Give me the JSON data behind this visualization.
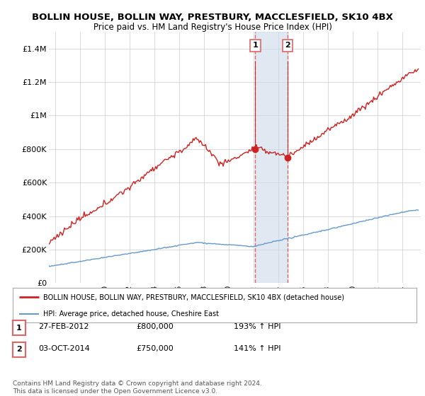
{
  "title": "BOLLIN HOUSE, BOLLIN WAY, PRESTBURY, MACCLESFIELD, SK10 4BX",
  "subtitle": "Price paid vs. HM Land Registry's House Price Index (HPI)",
  "ylabel_ticks": [
    "£0",
    "£200K",
    "£400K",
    "£600K",
    "£800K",
    "£1M",
    "£1.2M",
    "£1.4M"
  ],
  "ytick_values": [
    0,
    200000,
    400000,
    600000,
    800000,
    1000000,
    1200000,
    1400000
  ],
  "ylim": [
    0,
    1500000
  ],
  "xlim_start": 1995.5,
  "xlim_end": 2025.5,
  "sale1_date": 2012.15,
  "sale1_price": 800000,
  "sale1_label": "1",
  "sale2_date": 2014.75,
  "sale2_price": 750000,
  "sale2_label": "2",
  "red_color": "#cc2222",
  "blue_color": "#6699cc",
  "shade_color": "#ccd9e8",
  "vline_color": "#dd6666",
  "legend_red_label": "BOLLIN HOUSE, BOLLIN WAY, PRESTBURY, MACCLESFIELD, SK10 4BX (detached house)",
  "legend_blue_label": "HPI: Average price, detached house, Cheshire East",
  "table_rows": [
    {
      "num": "1",
      "date": "27-FEB-2012",
      "price": "£800,000",
      "hpi": "193% ↑ HPI"
    },
    {
      "num": "2",
      "date": "03-OCT-2014",
      "price": "£750,000",
      "hpi": "141% ↑ HPI"
    }
  ],
  "footnote": "Contains HM Land Registry data © Crown copyright and database right 2024.\nThis data is licensed under the Open Government Licence v3.0.",
  "background_color": "#ffffff",
  "grid_color": "#cccccc"
}
